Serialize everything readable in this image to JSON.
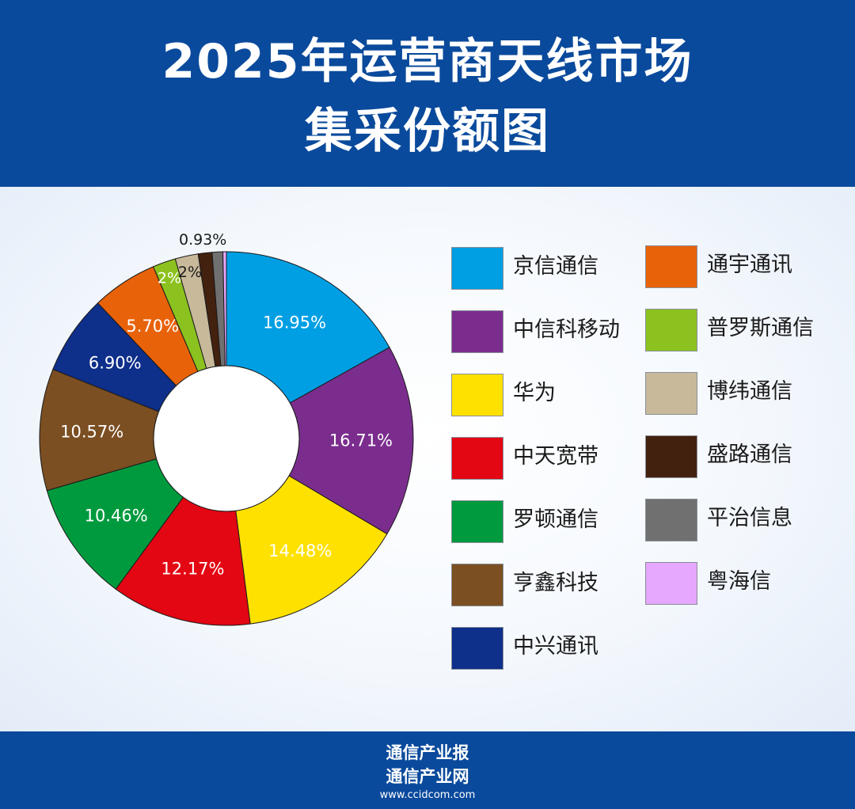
{
  "header": {
    "title_line1": "2025年运营商天线市场",
    "title_line2": "集采份额图"
  },
  "chart_data": {
    "type": "pie",
    "style": "donut",
    "start_angle_deg": 0,
    "direction": "clockwise",
    "legend_position": "right",
    "slices": [
      {
        "label": "京信通信",
        "value": 16.95,
        "value_label": "16.95%",
        "color": "#009fe3",
        "text_color": "#ffffff",
        "show_label": true,
        "label_outside": false
      },
      {
        "label": "中信科移动",
        "value": 16.71,
        "value_label": "16.71%",
        "color": "#7b2d8e",
        "text_color": "#ffffff",
        "show_label": true,
        "label_outside": false
      },
      {
        "label": "华为",
        "value": 14.48,
        "value_label": "14.48%",
        "color": "#ffe100",
        "text_color": "#ffffff",
        "show_label": true,
        "label_outside": false
      },
      {
        "label": "中天宽带",
        "value": 12.17,
        "value_label": "12.17%",
        "color": "#e30613",
        "text_color": "#ffffff",
        "show_label": true,
        "label_outside": false
      },
      {
        "label": "罗顿通信",
        "value": 10.46,
        "value_label": "10.46%",
        "color": "#009a3e",
        "text_color": "#ffffff",
        "show_label": true,
        "label_outside": false
      },
      {
        "label": "亨鑫科技",
        "value": 10.57,
        "value_label": "10.57%",
        "color": "#7b4f22",
        "text_color": "#ffffff",
        "show_label": true,
        "label_outside": false
      },
      {
        "label": "中兴通讯",
        "value": 6.9,
        "value_label": "6.90%",
        "color": "#0e2f8a",
        "text_color": "#ffffff",
        "show_label": true,
        "label_outside": false
      },
      {
        "label": "通宇通讯",
        "value": 5.7,
        "value_label": "5.70%",
        "color": "#e8620a",
        "text_color": "#ffffff",
        "show_label": true,
        "label_outside": false
      },
      {
        "label": "普罗斯通信",
        "value": 2,
        "value_label": "2%",
        "color": "#8cc21f",
        "text_color": "#ffffff",
        "show_label": true,
        "label_outside": false
      },
      {
        "label": "博纬通信",
        "value": 2,
        "value_label": "2%",
        "color": "#c8b99b",
        "text_color": "#1a1a1a",
        "show_label": true,
        "label_outside": false
      },
      {
        "label": "盛路通信",
        "value": 1.2,
        "value_label": "",
        "color": "#43210f",
        "text_color": "#ffffff",
        "show_label": false,
        "label_outside": false
      },
      {
        "label": "平治信息",
        "value": 0.93,
        "value_label": "0.93%",
        "color": "#707070",
        "text_color": "#1a1a1a",
        "show_label": true,
        "label_outside": true
      },
      {
        "label": "粤海信",
        "value": 0.3,
        "value_label": "",
        "color": "#e6a7ff",
        "text_color": "#1a1a1a",
        "show_label": false,
        "label_outside": false
      }
    ]
  },
  "legend": {
    "columns": [
      [
        {
          "label": "京信通信",
          "color": "#009fe3"
        },
        {
          "label": "中信科移动",
          "color": "#7b2d8e"
        },
        {
          "label": "华为",
          "color": "#ffe100"
        },
        {
          "label": "中天宽带",
          "color": "#e30613"
        },
        {
          "label": "罗顿通信",
          "color": "#009a3e"
        },
        {
          "label": "亨鑫科技",
          "color": "#7b4f22"
        },
        {
          "label": "中兴通讯",
          "color": "#0e2f8a"
        }
      ],
      [
        {
          "label": "通宇通讯",
          "color": "#e8620a"
        },
        {
          "label": "普罗斯通信",
          "color": "#8cc21f"
        },
        {
          "label": "博纬通信",
          "color": "#c8b99b"
        },
        {
          "label": "盛路通信",
          "color": "#43210f"
        },
        {
          "label": "平治信息",
          "color": "#707070"
        },
        {
          "label": "粤海信",
          "color": "#e6a7ff"
        }
      ]
    ]
  },
  "footer": {
    "line1": "通信产业报",
    "line2": "通信产业网",
    "line3": "www.ccidcom.com"
  }
}
